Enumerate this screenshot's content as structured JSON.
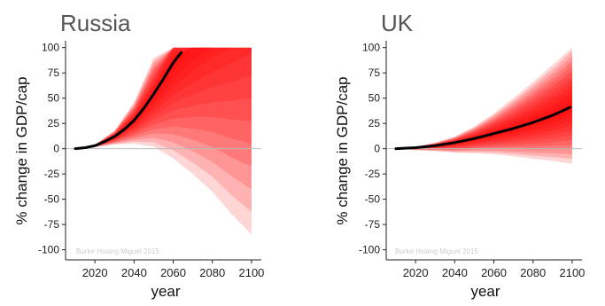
{
  "chart_data": [
    {
      "type": "area",
      "title": "Russia",
      "xlabel": "year",
      "ylabel": "% change in GDP/cap",
      "credit": "Burke Hsiang Miguel 2015",
      "xlim": [
        2005,
        2105
      ],
      "ylim": [
        -110,
        105
      ],
      "x_ticks": [
        "2020",
        "2040",
        "2060",
        "2080",
        "2100"
      ],
      "y_ticks": [
        "100",
        "75",
        "50",
        "25",
        "0",
        "-25",
        "-50",
        "-75",
        "-100"
      ],
      "fan_cap": 100,
      "fan_band_color": "#ff0000",
      "median_color": "#000000",
      "fan_years": [
        2010,
        2020,
        2030,
        2040,
        2050,
        2060,
        2070,
        2080,
        2090,
        2100
      ],
      "fan_upper_deltas": [
        0,
        3,
        14,
        34,
        68,
        100,
        100,
        100,
        100,
        100
      ],
      "fan_lower_deltas": [
        0,
        2,
        6,
        10,
        12,
        8,
        0,
        -10,
        -25,
        -40
      ],
      "fan_widths_upper": [
        0,
        1,
        4,
        12,
        22,
        30,
        40,
        50,
        60,
        65
      ],
      "fan_widths_lower": [
        0,
        1,
        4,
        10,
        20,
        35,
        50,
        65,
        80,
        90
      ],
      "median": {
        "x": [
          2010,
          2015,
          2020,
          2025,
          2030,
          2035,
          2040,
          2045,
          2050,
          2055,
          2060,
          2064
        ],
        "y": [
          0,
          1,
          3,
          7,
          12,
          19,
          28,
          40,
          54,
          69,
          85,
          95
        ]
      }
    },
    {
      "type": "area",
      "title": "UK",
      "xlabel": "year",
      "ylabel": "% change in GDP/cap",
      "credit": "Burke Hsiang Miguel 2015",
      "xlim": [
        2005,
        2105
      ],
      "ylim": [
        -110,
        105
      ],
      "x_ticks": [
        "2020",
        "2040",
        "2060",
        "2080",
        "2100"
      ],
      "y_ticks": [
        "100",
        "75",
        "50",
        "25",
        "0",
        "-25",
        "-50",
        "-75",
        "-100"
      ],
      "fan_cap": 100,
      "fan_band_color": "#ff0000",
      "median_color": "#000000",
      "fan_years": [
        2010,
        2020,
        2030,
        2040,
        2050,
        2060,
        2070,
        2080,
        2090,
        2100
      ],
      "fan_upper_deltas": [
        0,
        1,
        2,
        5,
        8,
        11,
        14,
        18,
        22,
        25
      ],
      "fan_lower_deltas": [
        0,
        -1,
        -2,
        -3,
        -3,
        -4,
        -6,
        -8,
        -10,
        -12
      ],
      "fan_widths_upper": [
        0,
        1,
        3,
        6,
        12,
        20,
        30,
        40,
        50,
        60
      ],
      "fan_widths_lower": [
        0,
        1,
        1,
        2,
        3,
        3,
        3,
        4,
        4,
        6
      ],
      "median": {
        "x": [
          2010,
          2020,
          2030,
          2040,
          2050,
          2060,
          2070,
          2080,
          2090,
          2099
        ],
        "y": [
          0,
          1,
          3,
          6,
          10,
          15,
          20,
          26,
          33,
          41
        ]
      }
    }
  ]
}
